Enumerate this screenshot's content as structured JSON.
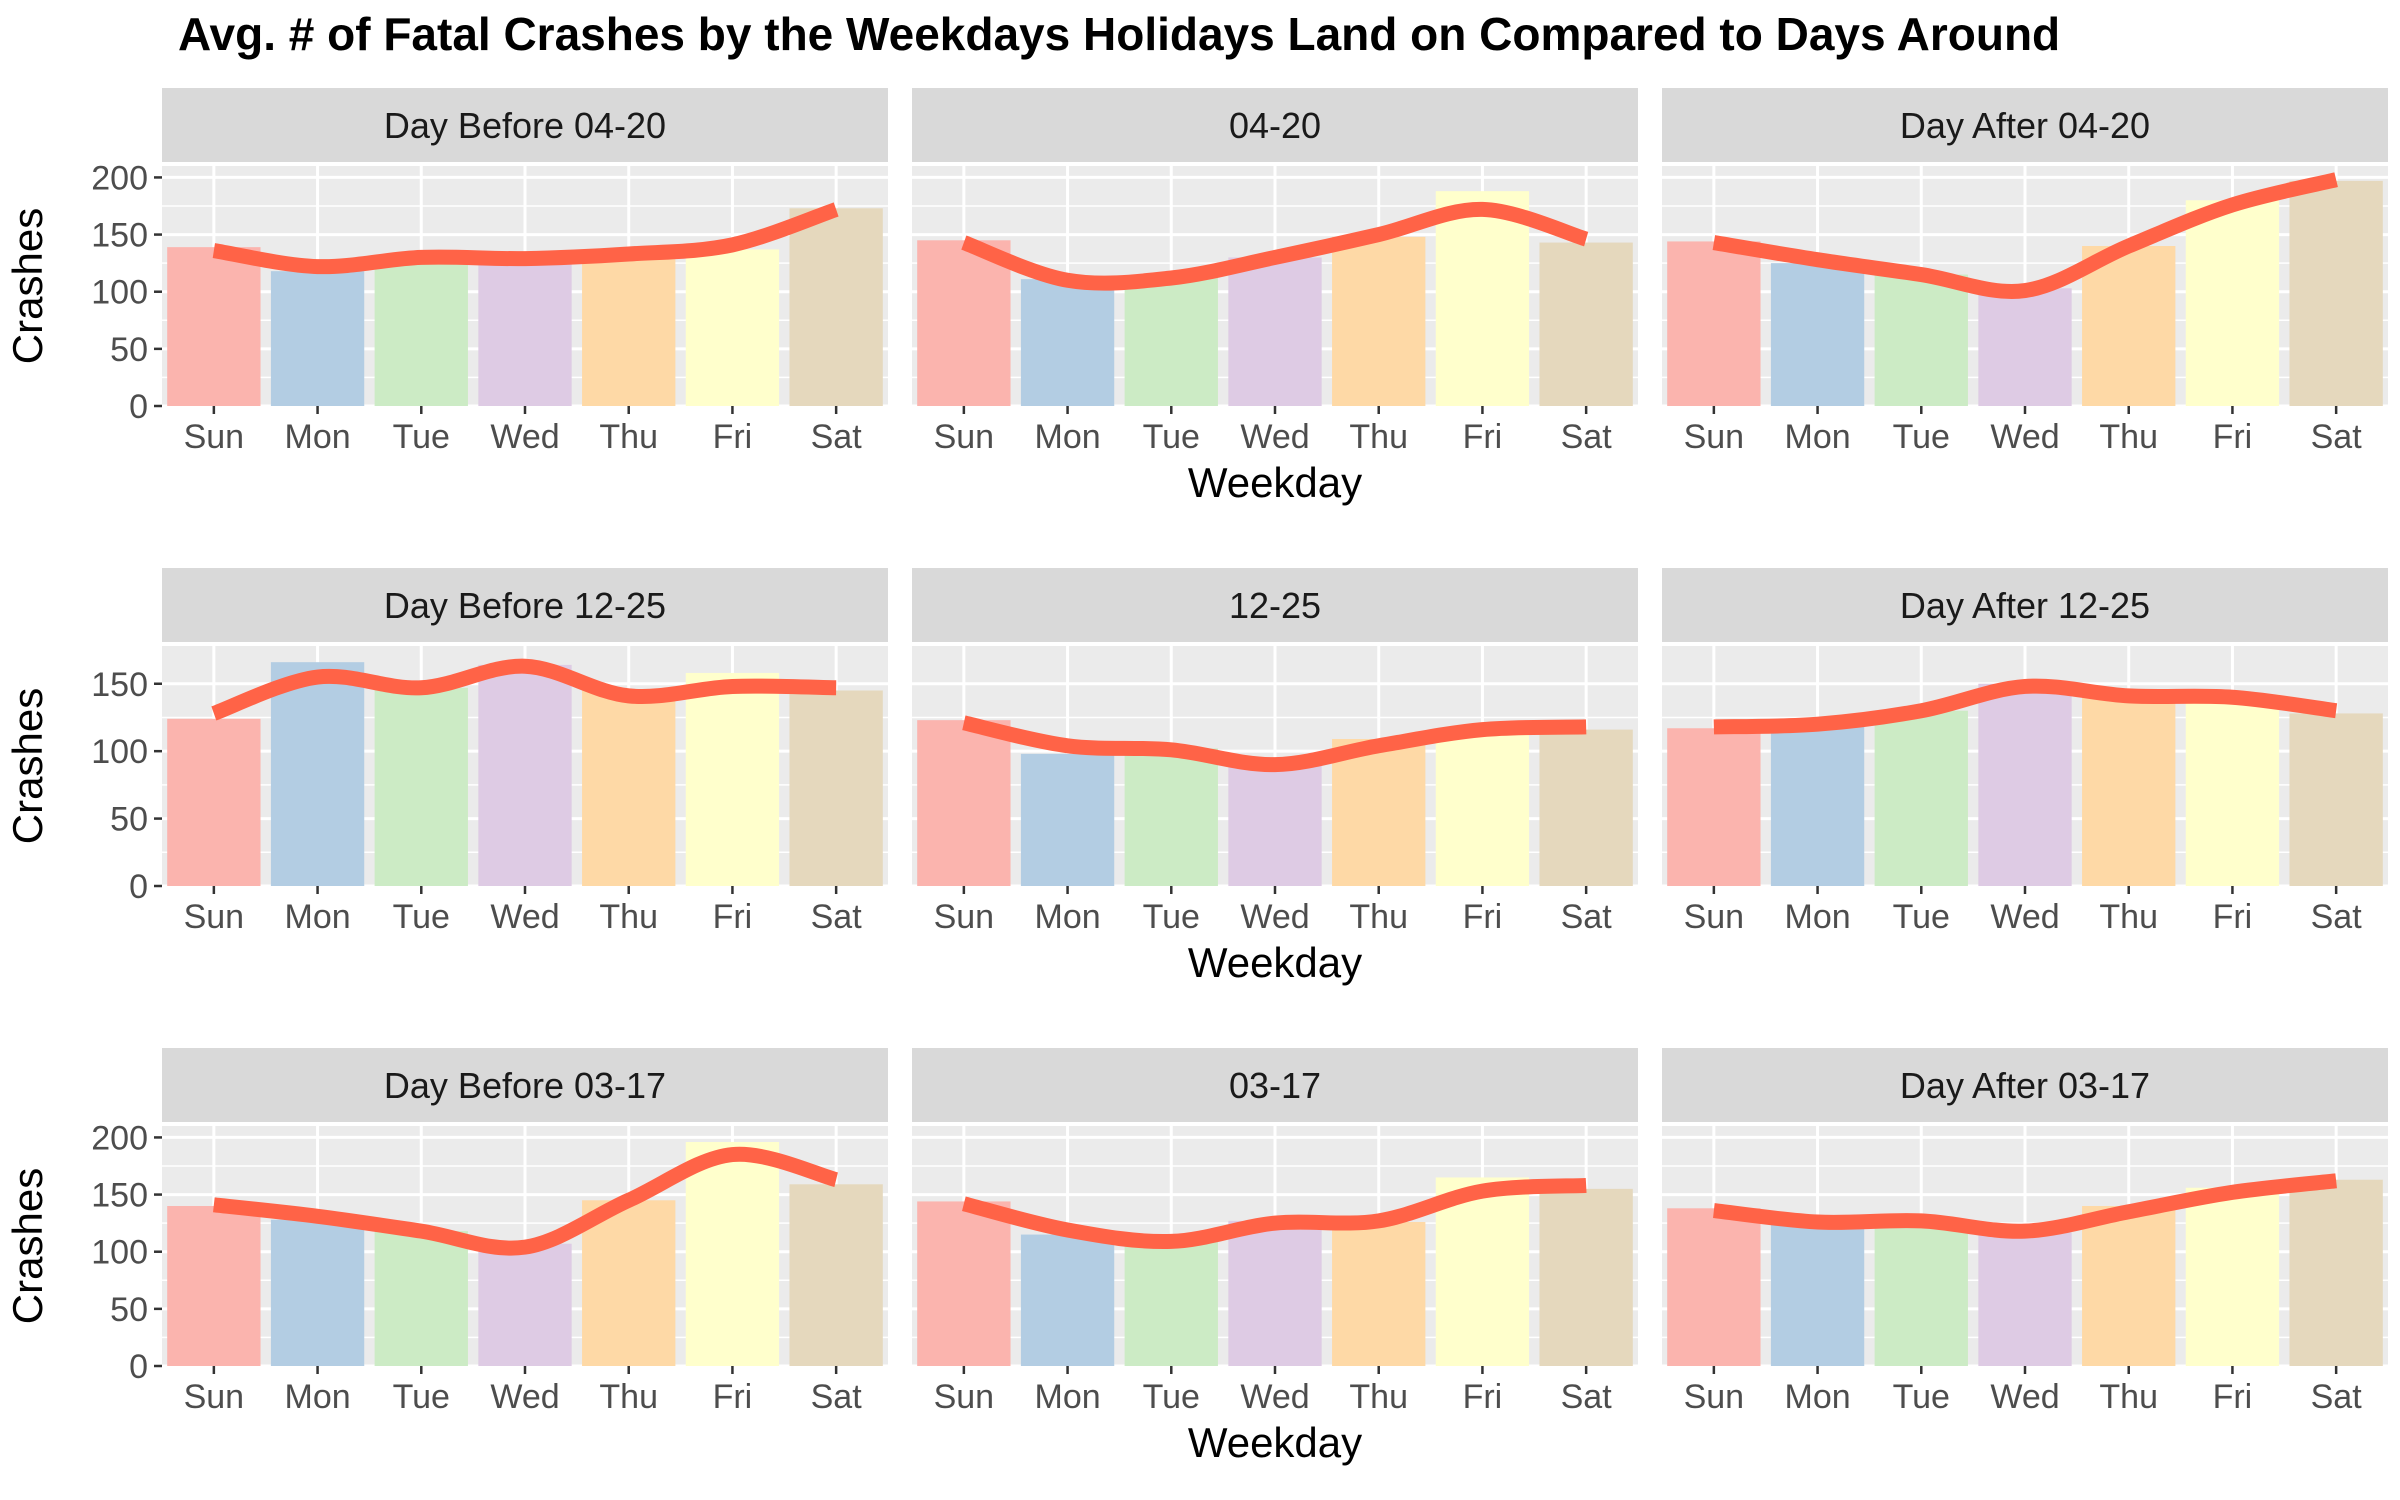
{
  "title": "Avg. # of Fatal Crashes by the Weekdays Holidays Land on Compared to Days Around",
  "colors": {
    "panel_bg": "#EBEBEB",
    "strip_bg": "#D9D9D9",
    "grid": "#FFFFFF",
    "smooth_line": "#FF6347",
    "bars": [
      "#FBB4AE",
      "#B3CDE3",
      "#CCEBC5",
      "#DECBE4",
      "#FED9A6",
      "#FFFFCC",
      "#E5D8BD"
    ]
  },
  "chart_data": {
    "type": "bar",
    "facets": "3 rows x 3 columns; y scale free per row, shared within row",
    "categories": [
      "Sun",
      "Mon",
      "Tue",
      "Wed",
      "Thu",
      "Fri",
      "Sat"
    ],
    "xlabel": "Weekday",
    "ylabel": "Crashes",
    "rows": [
      {
        "ylim": [
          0,
          210
        ],
        "yticks": [
          0,
          50,
          100,
          150,
          200
        ],
        "panels": [
          {
            "title": "Day Before 04-20",
            "values": [
              139,
              118,
              128,
              128,
              132,
              137,
              173
            ],
            "smooth": [
              136,
              122,
              130,
              129,
              133,
              141,
              172
            ]
          },
          {
            "title": "04-20",
            "values": [
              145,
              111,
              112,
              130,
              148,
              188,
              143
            ],
            "smooth": [
              143,
              110,
              112,
              130,
              150,
              172,
              146
            ]
          },
          {
            "title": "Day After 04-20",
            "values": [
              144,
              125,
              115,
              103,
              140,
              180,
              197
            ],
            "smooth": [
              143,
              128,
              115,
              101,
              140,
              176,
              198
            ]
          }
        ]
      },
      {
        "ylim": [
          0,
          178
        ],
        "yticks": [
          0,
          50,
          100,
          150
        ],
        "panels": [
          {
            "title": "Day Before 12-25",
            "values": [
              124,
              166,
              147,
              164,
              146,
              158,
              145
            ],
            "smooth": [
              128,
              155,
              147,
              163,
              141,
              148,
              147
            ]
          },
          {
            "title": "12-25",
            "values": [
              123,
              98,
              102,
              91,
              109,
              117,
              116
            ],
            "smooth": [
              121,
              104,
              101,
              90,
              104,
              116,
              118
            ]
          },
          {
            "title": "Day After 12-25",
            "values": [
              117,
              119,
              130,
              150,
              144,
              142,
              128
            ],
            "smooth": [
              118,
              120,
              130,
              148,
              141,
              140,
              130
            ]
          }
        ]
      },
      {
        "ylim": [
          0,
          210
        ],
        "yticks": [
          0,
          50,
          100,
          150,
          200
        ],
        "panels": [
          {
            "title": "Day Before 03-17",
            "values": [
              140,
              128,
              118,
              107,
              145,
              196,
              159
            ],
            "smooth": [
              141,
              131,
              118,
              104,
              145,
              185,
              163
            ]
          },
          {
            "title": "03-17",
            "values": [
              144,
              115,
              111,
              127,
              126,
              165,
              155
            ],
            "smooth": [
              142,
              119,
              109,
              125,
              127,
              153,
              158
            ]
          },
          {
            "title": "Day After 03-17",
            "values": [
              138,
              124,
              126,
              117,
              140,
              156,
              163
            ],
            "smooth": [
              136,
              126,
              127,
              118,
              135,
              152,
              162
            ]
          }
        ]
      }
    ]
  }
}
